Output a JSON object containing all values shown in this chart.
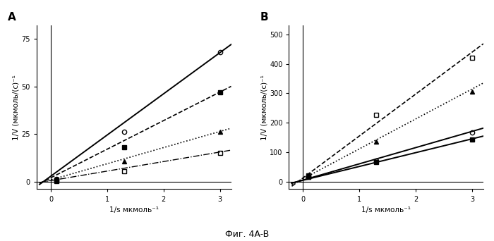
{
  "panel_A": {
    "title": "A",
    "ylabel": "1/V (мкмоль/(с)⁻¹",
    "xlabel": "1/s мкмоль⁻¹",
    "xlim": [
      -0.25,
      3.2
    ],
    "ylim": [
      -4,
      82
    ],
    "yticks": [
      0,
      25,
      50,
      75
    ],
    "xticks": [
      0,
      1,
      2,
      3
    ],
    "series": [
      {
        "marker": "o",
        "fillstyle": "none",
        "linestyle": "-",
        "linewidth": 1.4,
        "x_data": [
          0.1,
          1.3,
          3.0
        ],
        "y_data": [
          1.5,
          26.0,
          68.0
        ],
        "line_x": [
          -0.2,
          3.2
        ],
        "line_y": [
          -1.5,
          72.0
        ]
      },
      {
        "marker": "s",
        "fillstyle": "full",
        "linestyle": "--",
        "linewidth": 1.2,
        "x_data": [
          0.1,
          1.3,
          3.0
        ],
        "y_data": [
          1.0,
          18.0,
          47.0
        ],
        "line_x": [
          -0.2,
          3.2
        ],
        "line_y": [
          -1.0,
          50.0
        ]
      },
      {
        "marker": "^",
        "fillstyle": "full",
        "linestyle": ":",
        "linewidth": 1.2,
        "x_data": [
          0.1,
          1.3,
          3.0
        ],
        "y_data": [
          0.8,
          10.5,
          26.0
        ],
        "line_x": [
          -0.2,
          3.2
        ],
        "line_y": [
          -0.8,
          28.0
        ]
      },
      {
        "marker": "s",
        "fillstyle": "none",
        "linestyle": "-.",
        "linewidth": 1.0,
        "x_data": [
          0.1,
          1.3,
          3.0
        ],
        "y_data": [
          0.4,
          5.5,
          15.0
        ],
        "line_x": [
          -0.2,
          3.2
        ],
        "line_y": [
          -0.5,
          16.5
        ]
      }
    ]
  },
  "panel_B": {
    "title": "B",
    "ylabel": "1/V (мкмоль/(с)⁻¹",
    "xlabel": "1/s мкмоль⁻¹",
    "xlim": [
      -0.25,
      3.2
    ],
    "ylim": [
      -25,
      530
    ],
    "yticks": [
      0,
      100,
      200,
      300,
      400,
      500
    ],
    "xticks": [
      0,
      1,
      2,
      3
    ],
    "series": [
      {
        "marker": "s",
        "fillstyle": "none",
        "linestyle": "--",
        "linewidth": 1.2,
        "x_data": [
          0.1,
          1.3,
          3.0
        ],
        "y_data": [
          22.0,
          228.0,
          420.0
        ],
        "line_x": [
          -0.2,
          3.2
        ],
        "line_y": [
          -15.0,
          468.0
        ]
      },
      {
        "marker": "^",
        "fillstyle": "full",
        "linestyle": ":",
        "linewidth": 1.2,
        "x_data": [
          0.1,
          1.3,
          3.0
        ],
        "y_data": [
          16.0,
          135.0,
          305.0
        ],
        "line_x": [
          -0.2,
          3.2
        ],
        "line_y": [
          -10.0,
          335.0
        ]
      },
      {
        "marker": "o",
        "fillstyle": "none",
        "linestyle": "-",
        "linewidth": 1.4,
        "x_data": [
          0.1,
          1.3,
          3.0
        ],
        "y_data": [
          18.0,
          72.0,
          168.0
        ],
        "line_x": [
          -0.2,
          3.2
        ],
        "line_y": [
          -5.0,
          182.0
        ]
      },
      {
        "marker": "s",
        "fillstyle": "full",
        "linestyle": "-",
        "linewidth": 1.4,
        "x_data": [
          0.1,
          1.3,
          3.0
        ],
        "y_data": [
          16.0,
          68.0,
          143.0
        ],
        "line_x": [
          -0.2,
          3.2
        ],
        "line_y": [
          -4.0,
          155.0
        ]
      }
    ]
  },
  "figure_label": "Фиг. 4A-B"
}
